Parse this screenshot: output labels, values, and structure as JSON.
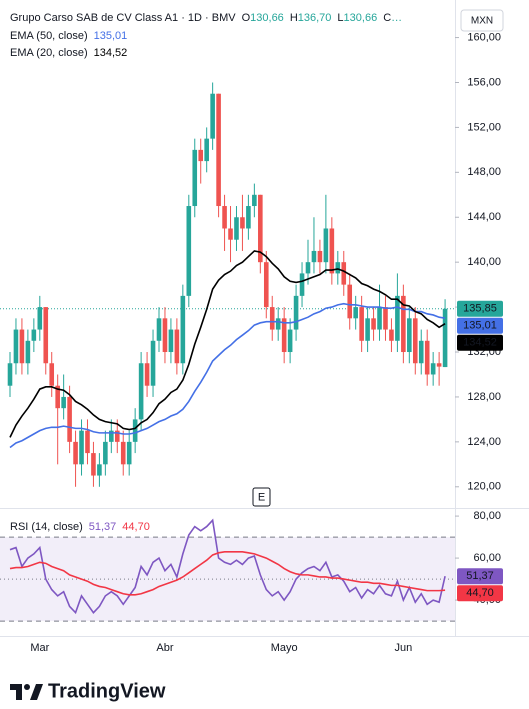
{
  "chart_data": [
    {
      "type": "candlestick",
      "title": "Grupo Carso SAB de CV Class A1 · 1D · BMV",
      "ohlc_labels": [
        {
          "name": "O",
          "label": "130,66"
        },
        {
          "name": "H",
          "label": "136,70"
        },
        {
          "name": "L",
          "label": "130,66"
        },
        {
          "name": "C",
          "label": "…"
        }
      ],
      "currency": "MXN",
      "event_marker": "E",
      "categories": [
        null,
        null,
        null,
        null,
        null,
        "Mar",
        null,
        null,
        null,
        null,
        null,
        null,
        null,
        null,
        null,
        null,
        null,
        null,
        null,
        null,
        null,
        null,
        null,
        null,
        null,
        null,
        "Abr",
        null,
        null,
        null,
        null,
        null,
        null,
        null,
        null,
        null,
        null,
        null,
        null,
        null,
        null,
        null,
        null,
        null,
        null,
        null,
        "Mayo",
        null,
        null,
        null,
        null,
        null,
        null,
        null,
        null,
        null,
        null,
        null,
        null,
        null,
        null,
        null,
        null,
        null,
        null,
        null,
        "Jun",
        null,
        null,
        null,
        null,
        null,
        null,
        null
      ],
      "open": [
        129,
        131,
        134,
        131,
        133,
        134,
        136,
        131,
        129,
        127,
        128,
        124,
        122,
        125,
        123,
        121,
        122,
        124,
        125,
        124,
        122,
        124,
        126,
        131,
        129,
        133,
        135,
        132,
        134,
        131,
        137,
        145,
        150,
        149,
        151,
        155,
        145,
        143,
        142,
        144,
        143,
        145,
        146,
        140,
        136,
        134,
        135,
        132,
        134,
        137,
        139,
        140,
        141,
        140,
        143,
        139,
        140,
        138,
        135,
        136,
        133,
        135,
        134,
        136,
        134,
        133,
        137,
        132,
        135,
        131,
        133,
        130,
        131,
        130.66
      ],
      "high": [
        132,
        135,
        135,
        134,
        135,
        137,
        136,
        132,
        130,
        130,
        129,
        125,
        126,
        126,
        124,
        123,
        125,
        126,
        126,
        125,
        125,
        127,
        132,
        132,
        134,
        136,
        136,
        135,
        135,
        138,
        146,
        151,
        151,
        152,
        156,
        155,
        146,
        145,
        145,
        146,
        146,
        147,
        146,
        141,
        137,
        136,
        136,
        135,
        138,
        140,
        142,
        144,
        142,
        146,
        144,
        141,
        141,
        139,
        137,
        137,
        136,
        136,
        138,
        137,
        135,
        139,
        138,
        136,
        136,
        134,
        134,
        132,
        132,
        136.7
      ],
      "low": [
        128,
        130,
        130,
        130,
        132,
        133,
        130,
        128,
        122,
        126,
        123,
        120,
        121,
        122,
        120,
        120,
        121,
        123,
        123,
        121,
        121,
        123,
        125,
        128,
        128,
        132,
        131,
        131,
        130,
        130,
        136,
        144,
        147,
        148,
        150,
        144,
        141,
        140,
        141,
        141,
        142,
        144,
        139,
        135,
        133,
        133,
        131,
        131,
        133,
        136,
        138,
        139,
        139,
        139,
        138,
        138,
        137,
        134,
        134,
        132,
        132,
        133,
        133,
        133,
        132,
        132,
        131,
        131,
        130,
        130,
        129,
        129,
        129,
        130.66
      ],
      "close": [
        131,
        134,
        131,
        133,
        134,
        136,
        131,
        129,
        127,
        128,
        124,
        122,
        125,
        123,
        121,
        122,
        124,
        125,
        124,
        122,
        124,
        126,
        131,
        129,
        133,
        135,
        132,
        134,
        131,
        137,
        145,
        150,
        149,
        151,
        155,
        145,
        143,
        142,
        144,
        143,
        145,
        146,
        140,
        136,
        134,
        135,
        132,
        134,
        137,
        139,
        140,
        141,
        140,
        143,
        139,
        140,
        138,
        135,
        136,
        133,
        135,
        134,
        136,
        134,
        133,
        137,
        132,
        135,
        131,
        133,
        130,
        131,
        130.7,
        135.85
      ],
      "close_label": "135,85",
      "up_color": "#26a69a",
      "down_color": "#ef5350",
      "series": [
        {
          "name": "EMA (50, close)",
          "color": "#4470e6",
          "last_label": "135,01",
          "values": [
            123.5,
            123.9,
            124.1,
            124.4,
            124.7,
            125,
            125.2,
            125.3,
            125.3,
            125.4,
            125.3,
            125.2,
            125.2,
            125.1,
            124.9,
            124.8,
            124.8,
            124.8,
            124.8,
            124.7,
            124.7,
            124.8,
            125,
            125.2,
            125.5,
            125.8,
            126,
            126.3,
            126.5,
            126.9,
            127.6,
            128.5,
            129.3,
            130.2,
            131.2,
            131.7,
            132.2,
            132.6,
            133.1,
            133.5,
            133.9,
            134.4,
            134.6,
            134.7,
            134.7,
            134.7,
            134.6,
            134.6,
            134.7,
            134.9,
            135.1,
            135.4,
            135.6,
            135.9,
            136,
            136.2,
            136.3,
            136.2,
            136.2,
            136.1,
            136,
            136,
            136,
            135.9,
            135.9,
            136,
            135.8,
            135.8,
            135.6,
            135.6,
            135.4,
            135.3,
            135.1,
            135.01
          ]
        },
        {
          "name": "EMA (20, close)",
          "color": "#000000",
          "last_label": "134,52",
          "values": [
            124.4,
            125.5,
            126.3,
            127,
            127.8,
            128.7,
            128.9,
            128.9,
            128.7,
            128.6,
            128.2,
            127.6,
            127.3,
            126.9,
            126.4,
            126,
            125.8,
            125.7,
            125.6,
            125.2,
            125.1,
            125.2,
            125.7,
            126,
            126.6,
            127.4,
            127.8,
            128.4,
            128.7,
            129.5,
            130.9,
            132.7,
            134.2,
            135.8,
            137.6,
            138.4,
            138.9,
            139.2,
            139.7,
            140,
            140.5,
            141,
            140.9,
            140.5,
            139.9,
            139.4,
            138.7,
            138.3,
            138.2,
            138.3,
            138.5,
            138.7,
            138.9,
            139.3,
            139.3,
            139.4,
            139.2,
            138.9,
            138.6,
            138.1,
            137.9,
            137.6,
            137.4,
            137.1,
            136.7,
            136.7,
            136.2,
            136.1,
            135.6,
            135.4,
            134.9,
            134.6,
            134.2,
            134.52
          ]
        }
      ],
      "ylim": [
        118.2,
        162.9
      ],
      "yticks": [
        {
          "value": 120,
          "label": "120,00"
        },
        {
          "value": 124,
          "label": "124,00"
        },
        {
          "value": 128,
          "label": "128,00"
        },
        {
          "value": 132,
          "label": "132,00"
        },
        {
          "value": 136,
          "label": "136,00"
        },
        {
          "value": 140,
          "label": "140,00"
        },
        {
          "value": 144,
          "label": "144,00"
        },
        {
          "value": 148,
          "label": "148,00"
        },
        {
          "value": 152,
          "label": "152,00"
        },
        {
          "value": 156,
          "label": "156,00"
        },
        {
          "value": 160,
          "label": "160,00"
        }
      ]
    },
    {
      "type": "line",
      "title": "RSI (14, close)",
      "band": [
        30,
        70
      ],
      "midline": 50,
      "band_color": "#7e57c2",
      "series": [
        {
          "color": "#7e57c2",
          "last_label": "51,37",
          "values": [
            64,
            65,
            56,
            60,
            62,
            65,
            50,
            45,
            42,
            44,
            37,
            34,
            42,
            38,
            34,
            37,
            42,
            44,
            42,
            38,
            42,
            46,
            56,
            52,
            58,
            60,
            54,
            57,
            51,
            62,
            71,
            75,
            73,
            75,
            78,
            60,
            58,
            57,
            59,
            57,
            60,
            61,
            52,
            45,
            42,
            44,
            40,
            44,
            50,
            53,
            55,
            56,
            54,
            58,
            51,
            52,
            49,
            44,
            46,
            41,
            45,
            43,
            47,
            43,
            42,
            49,
            40,
            46,
            39,
            43,
            38,
            40,
            39,
            51.37
          ]
        },
        {
          "color": "#f23645",
          "last_label": "44,70",
          "values": [
            55,
            55.5,
            55.5,
            56,
            57,
            58,
            57.5,
            56,
            55,
            54,
            52,
            51,
            50,
            49,
            47.5,
            46.5,
            46,
            45,
            44,
            43,
            42.5,
            42.5,
            43,
            44,
            45,
            46.5,
            47.5,
            48.5,
            49.5,
            51,
            53,
            55,
            57,
            59,
            61.5,
            62.5,
            63,
            63,
            63,
            63,
            62.5,
            62,
            61,
            60,
            58.5,
            57,
            55,
            53.5,
            52.5,
            52,
            52,
            51.5,
            51,
            51,
            50.5,
            50.5,
            50,
            49.5,
            49,
            48.5,
            48.5,
            48,
            48,
            47.5,
            47,
            47,
            46.5,
            46,
            45.5,
            45,
            44.5,
            44.5,
            44.5,
            44.7
          ]
        }
      ],
      "ylim": [
        24.8,
        82.9
      ],
      "yticks": [
        {
          "value": 40,
          "label": "40,00"
        },
        {
          "value": 60,
          "label": "60,00"
        },
        {
          "value": 80,
          "label": "80,00"
        }
      ]
    }
  ],
  "brand": "TradingView"
}
